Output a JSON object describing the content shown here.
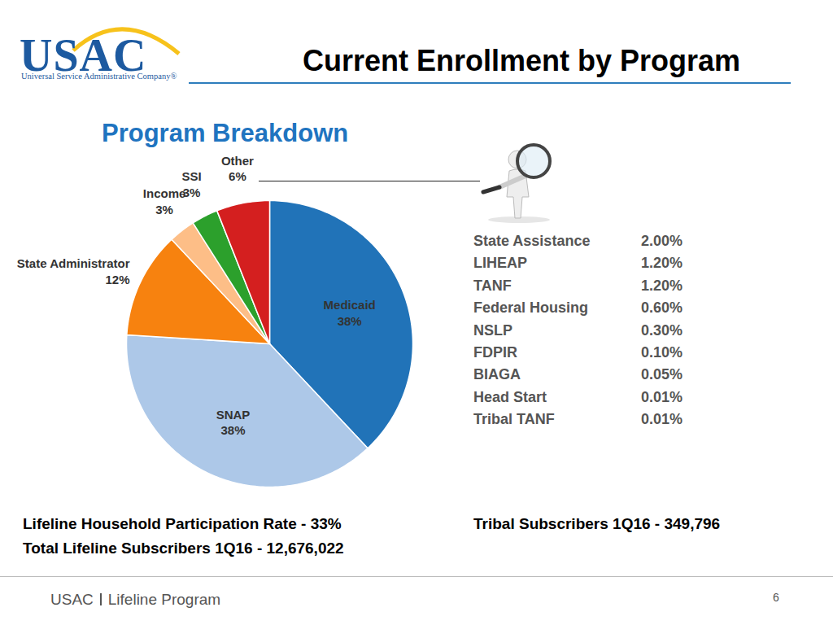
{
  "header": {
    "logo": "USAC",
    "logo_subtitle": "Universal Service Administrative Company®",
    "title": "Current Enrollment by Program"
  },
  "chart_data": {
    "type": "pie",
    "title": "Program Breakdown",
    "categories": [
      "Medicaid",
      "SNAP",
      "State Administrator",
      "Income",
      "SSI",
      "Other"
    ],
    "values": [
      38,
      38,
      12,
      3,
      3,
      6
    ],
    "value_labels": [
      "38%",
      "38%",
      "12%",
      "3%",
      "3%",
      "6%"
    ],
    "colors": [
      "#2173b8",
      "#adc8e8",
      "#f7820f",
      "#fdbe87",
      "#2ca02c",
      "#d41f1f"
    ],
    "data_labels": true
  },
  "other_breakdown": {
    "categories": [
      "State Assistance",
      "LIHEAP",
      "TANF",
      "Federal Housing",
      "NSLP",
      "FDPIR",
      "BIAGA",
      "Head Start",
      "Tribal TANF"
    ],
    "values": [
      2.0,
      1.2,
      1.2,
      0.6,
      0.3,
      0.1,
      0.05,
      0.01,
      0.01
    ],
    "value_labels": [
      "2.00%",
      "1.20%",
      "1.20%",
      "0.60%",
      "0.30%",
      "0.10%",
      "0.05%",
      "0.01%",
      "0.01%"
    ]
  },
  "footer_stats": {
    "participation": "Lifeline Household Participation Rate - 33%",
    "total": "Total Lifeline Subscribers 1Q16 - 12,676,022",
    "tribal": "Tribal Subscribers 1Q16 - 349,796"
  },
  "footer": {
    "left": [
      "USAC",
      "Lifeline Program"
    ],
    "page": "6"
  }
}
